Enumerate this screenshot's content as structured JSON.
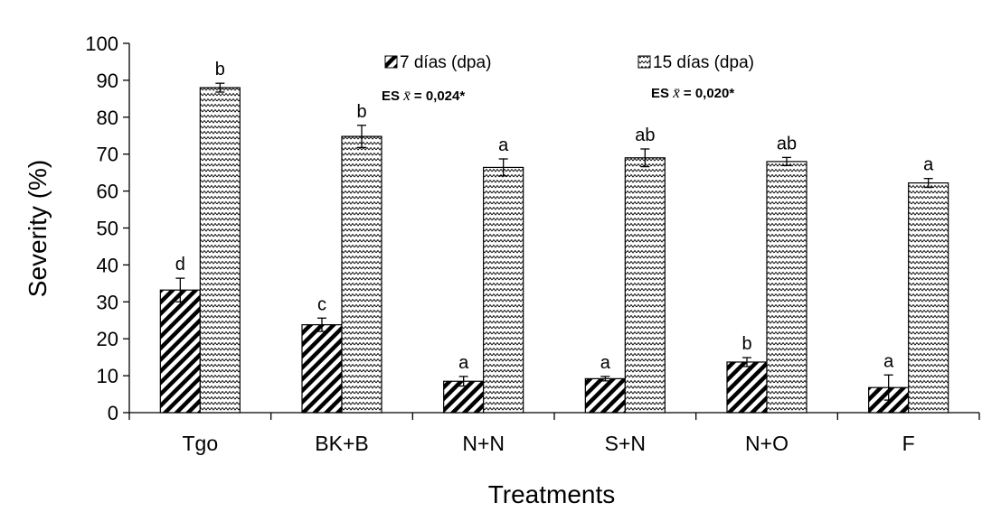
{
  "chart_data": {
    "type": "bar",
    "xlabel": "Treatments",
    "ylabel": "Severity (%)",
    "ylim": [
      0,
      100
    ],
    "yticks": [
      "0",
      "10",
      "20",
      "30",
      "40",
      "50",
      "60",
      "70",
      "80",
      "90",
      "100"
    ],
    "categories": [
      "Tgo",
      "BK+B",
      "N+N",
      "S+N",
      "N+O",
      "F"
    ],
    "series": [
      {
        "name": "7 días (dpa)",
        "pattern": "diagonal-hatch",
        "values": [
          33.2,
          23.8,
          8.5,
          9.2,
          13.7,
          6.8
        ],
        "errors": [
          3.2,
          1.8,
          1.3,
          0.6,
          1.2,
          3.4
        ],
        "letters": [
          "d",
          "c",
          "a",
          "a",
          "b",
          "a"
        ],
        "es_label": "ES",
        "es_symbol": "x̄",
        "es_value": "= 0,024*"
      },
      {
        "name": "15 días (dpa)",
        "pattern": "wavy",
        "values": [
          88.0,
          74.8,
          66.4,
          69.0,
          68.0,
          62.2
        ],
        "errors": [
          1.2,
          3.0,
          2.3,
          2.4,
          1.1,
          1.2
        ],
        "letters": [
          "b",
          "b",
          "a",
          "ab",
          "ab",
          "a"
        ],
        "es_label": "ES",
        "es_symbol": "x̄",
        "es_value": "= 0,020*"
      }
    ],
    "legend": "top"
  }
}
